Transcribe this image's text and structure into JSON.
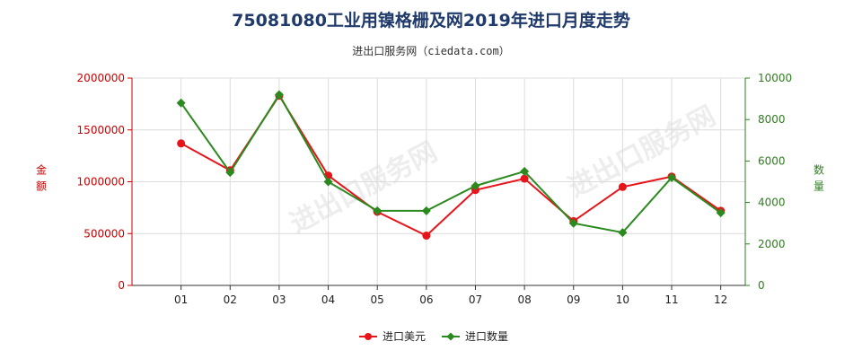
{
  "chart_data": {
    "type": "line",
    "title": "75081080工业用镍格栅及网2019年进口月度走势",
    "subtitle": "进出口服务网（ciedata.com）",
    "categories": [
      "01",
      "02",
      "03",
      "04",
      "05",
      "06",
      "07",
      "08",
      "09",
      "10",
      "11",
      "12"
    ],
    "ylabel_left": "金额",
    "ylabel_right": "数量",
    "ylim_left": [
      0,
      2000000
    ],
    "ylim_right": [
      0,
      10000
    ],
    "yticks_left": [
      "0",
      "500000",
      "1000000",
      "1500000",
      "2000000"
    ],
    "yticks_right": [
      "0",
      "2000",
      "4000",
      "6000",
      "8000",
      "10000"
    ],
    "grid": true,
    "legend_position": "bottom-center",
    "series": [
      {
        "name": "进口美元",
        "axis": "left",
        "color": "#e8141b",
        "marker": "circle",
        "values": [
          1370000,
          1110000,
          1830000,
          1060000,
          710000,
          480000,
          920000,
          1030000,
          620000,
          950000,
          1050000,
          720000
        ]
      },
      {
        "name": "进口数量",
        "axis": "right",
        "color": "#2a8a1e",
        "marker": "diamond",
        "values": [
          8800,
          5450,
          9200,
          5000,
          3600,
          3600,
          4800,
          5500,
          3000,
          2550,
          5200,
          3500
        ]
      }
    ]
  },
  "watermark": "进出口服务网"
}
